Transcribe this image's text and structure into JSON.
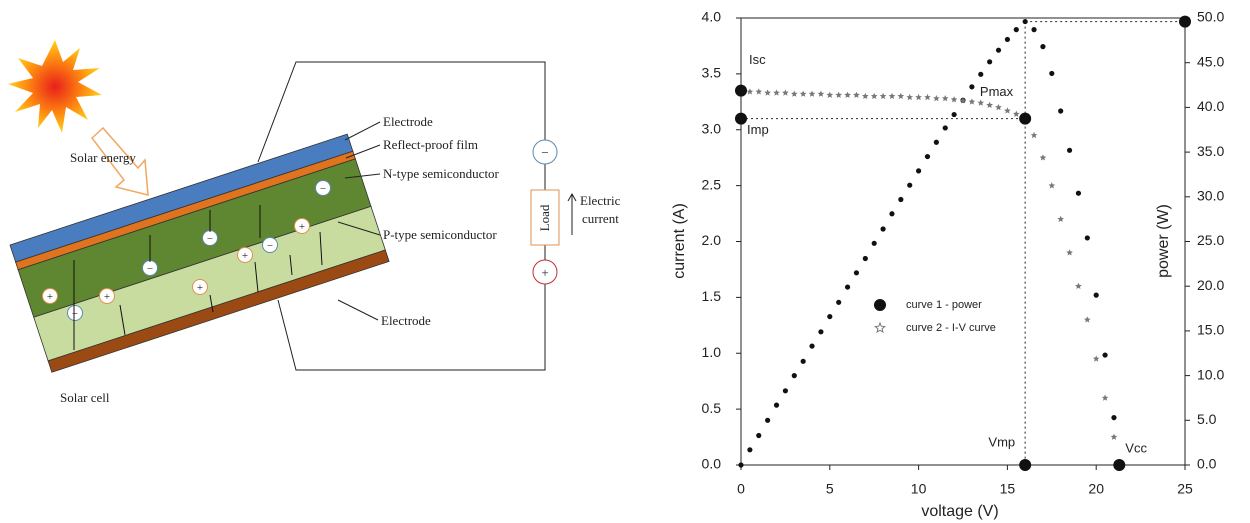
{
  "diagram": {
    "labels": {
      "electrode_top": "Electrode",
      "film": "Reflect-proof film",
      "n_type": "N-type semiconductor",
      "p_type": "P-type semiconductor",
      "electrode_bottom": "Electrode",
      "cell": "Solar cell",
      "energy": "Solar energy",
      "load": "Load",
      "current": [
        "Electric",
        "current"
      ]
    },
    "plus": "+",
    "minus": "−"
  },
  "chart_data": {
    "type": "scatter",
    "x_label": "voltage (V)",
    "y_label": "current (A)",
    "y2_label": "power (W)",
    "x": [
      0,
      0.5,
      1,
      1.5,
      2,
      2.5,
      3,
      3.5,
      4,
      4.5,
      5,
      5.5,
      6,
      6.5,
      7,
      7.5,
      8,
      8.5,
      9,
      9.5,
      10,
      10.5,
      11,
      11.5,
      12,
      12.5,
      13,
      13.5,
      14,
      14.5,
      15,
      15.5,
      16,
      16.5,
      17,
      17.5,
      18,
      18.5,
      19,
      19.5,
      20,
      20.5,
      21,
      21.3
    ],
    "series": [
      {
        "name": "curve 1 - power",
        "color": "#111111",
        "marker": "circle",
        "axis": "y2",
        "values": [
          0,
          1.7,
          3.3,
          5.0,
          6.7,
          8.3,
          10.0,
          11.6,
          13.3,
          14.9,
          16.6,
          18.2,
          19.9,
          21.5,
          23.1,
          24.8,
          26.4,
          28.1,
          29.7,
          31.3,
          32.9,
          34.5,
          36.1,
          37.7,
          39.2,
          40.8,
          42.3,
          43.7,
          45.1,
          46.4,
          47.6,
          48.7,
          49.6,
          48.7,
          46.8,
          43.8,
          39.6,
          35.2,
          30.4,
          25.4,
          19.0,
          12.3,
          5.3,
          0
        ]
      },
      {
        "name": "curve 2 - I-V curve",
        "color": "#777777",
        "marker": "star",
        "axis": "y",
        "values": [
          3.35,
          3.34,
          3.34,
          3.33,
          3.33,
          3.33,
          3.32,
          3.32,
          3.32,
          3.32,
          3.31,
          3.31,
          3.31,
          3.31,
          3.3,
          3.3,
          3.3,
          3.3,
          3.3,
          3.29,
          3.29,
          3.29,
          3.28,
          3.28,
          3.27,
          3.26,
          3.25,
          3.24,
          3.22,
          3.2,
          3.17,
          3.14,
          3.1,
          2.95,
          2.75,
          2.5,
          2.2,
          1.9,
          1.6,
          1.3,
          0.95,
          0.6,
          0.25,
          0
        ]
      }
    ],
    "annotations": [
      {
        "label": "Isc",
        "x": 0,
        "y": 3.35
      },
      {
        "label": "Imp",
        "x": 0,
        "y": 3.1
      },
      {
        "label": "Pmax",
        "x": 16,
        "y": 3.1
      },
      {
        "label": "Vmp",
        "x": 16,
        "y": 0
      },
      {
        "label": "Vcc",
        "x": 21.3,
        "y": 0
      },
      {
        "x": 25,
        "y": 49.6,
        "axis": "y2"
      }
    ],
    "xlim": [
      0,
      25
    ],
    "xticks": [
      0,
      5,
      10,
      15,
      20,
      25
    ],
    "ylim": [
      0,
      4
    ],
    "yticks": [
      {
        "value": 0,
        "label": "0.0"
      },
      0.5,
      {
        "value": 1,
        "label": "1.0"
      },
      1.5,
      {
        "value": 2,
        "label": "2.0"
      },
      2.5,
      {
        "value": 3,
        "label": "3.0"
      },
      3.5,
      {
        "value": 4,
        "label": "4.0"
      }
    ],
    "y2lim": [
      0,
      50
    ],
    "y2ticks": [
      {
        "value": 0,
        "label": "0.0"
      },
      {
        "value": 5,
        "label": "5.0"
      },
      {
        "value": 10,
        "label": "10.0"
      },
      {
        "value": 15,
        "label": "15.0"
      },
      {
        "value": 20,
        "label": "20.0"
      },
      {
        "value": 25,
        "label": "25.0"
      },
      {
        "value": 30,
        "label": "30.0"
      },
      {
        "value": 35,
        "label": "35.0"
      },
      {
        "value": 40,
        "label": "40.0"
      },
      {
        "value": 45,
        "label": "45.0"
      },
      {
        "value": 50,
        "label": "50.0"
      }
    ],
    "grid": false
  }
}
